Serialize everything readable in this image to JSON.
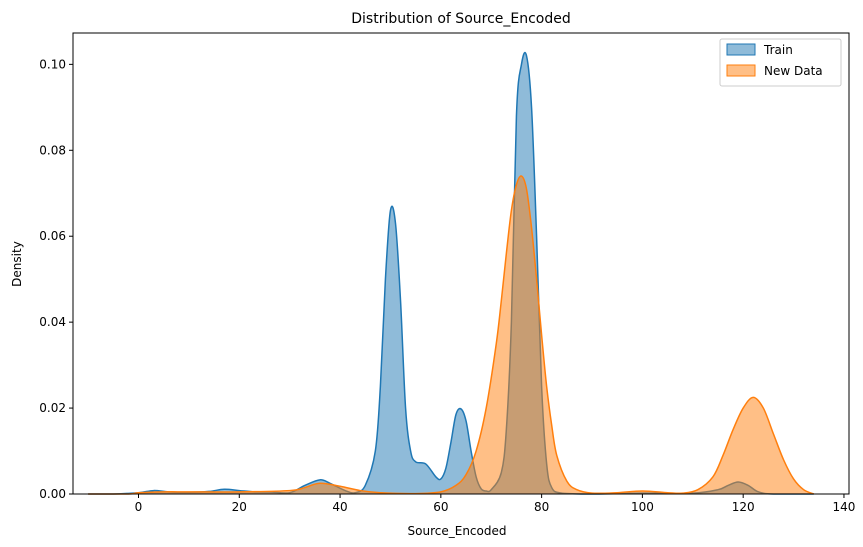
{
  "chart_data": {
    "type": "area",
    "title": "Distribution of Source_Encoded",
    "xlabel": "Source_Encoded",
    "ylabel": "Density",
    "xlim": [
      -13,
      141
    ],
    "ylim": [
      0,
      0.1073
    ],
    "xticks": [
      0,
      20,
      40,
      60,
      80,
      100,
      120,
      140
    ],
    "xtick_labels": [
      "0",
      "20",
      "40",
      "60",
      "80",
      "100",
      "120",
      "140"
    ],
    "yticks": [
      0,
      0.02,
      0.04,
      0.06,
      0.08,
      0.1
    ],
    "ytick_labels": [
      "0.00",
      "0.02",
      "0.04",
      "0.06",
      "0.08",
      "0.10"
    ],
    "grid": false,
    "legend": {
      "position": "top-right",
      "entries": [
        "Train",
        "New Data"
      ]
    },
    "series": [
      {
        "name": "Train",
        "color": "#1f77b4",
        "x": [
          -10,
          -5,
          0,
          3,
          6,
          10,
          14,
          17,
          20,
          23,
          26,
          30,
          33,
          36,
          38,
          41,
          43,
          45,
          47,
          48,
          49,
          50,
          51,
          52,
          53,
          54,
          55,
          57,
          59,
          60,
          61,
          62,
          63,
          64,
          65,
          66,
          67,
          68,
          69,
          70,
          72,
          73,
          74,
          75,
          76,
          77,
          78,
          79,
          80,
          81,
          82,
          84,
          90,
          100,
          110,
          115,
          117,
          119,
          121,
          123,
          126,
          134
        ],
        "y": [
          0,
          0,
          0.0003,
          0.0008,
          0.0005,
          0.0004,
          0.0006,
          0.0011,
          0.0008,
          0.0005,
          0.0005,
          0.0003,
          0.002,
          0.0033,
          0.0025,
          0.0008,
          0.0003,
          0.002,
          0.01,
          0.025,
          0.05,
          0.066,
          0.063,
          0.045,
          0.02,
          0.01,
          0.0075,
          0.007,
          0.004,
          0.0035,
          0.006,
          0.012,
          0.0185,
          0.0198,
          0.017,
          0.01,
          0.004,
          0.0012,
          0.0007,
          0.001,
          0.005,
          0.015,
          0.04,
          0.088,
          0.1,
          0.102,
          0.09,
          0.06,
          0.025,
          0.007,
          0.0015,
          0.0002,
          0,
          0.0002,
          0.0002,
          0.001,
          0.002,
          0.0028,
          0.002,
          0.0005,
          0,
          0
        ]
      },
      {
        "name": "New Data",
        "color": "#ff7f0e",
        "x": [
          -10,
          -2,
          0,
          5,
          10,
          20,
          30,
          33,
          36,
          40,
          44,
          48,
          55,
          60,
          63,
          65,
          67,
          69,
          71,
          72,
          73,
          74,
          75,
          76,
          77,
          78,
          79,
          80,
          81,
          82,
          83,
          85,
          87,
          90,
          95,
          100,
          105,
          108,
          111,
          114,
          116,
          118,
          120,
          122,
          124,
          126,
          128,
          130,
          132,
          134
        ],
        "y": [
          0,
          0,
          0.0003,
          0.0005,
          0.0005,
          0.0005,
          0.0008,
          0.0015,
          0.0025,
          0.0018,
          0.0008,
          0.0003,
          0.0001,
          0.0005,
          0.002,
          0.0045,
          0.01,
          0.02,
          0.035,
          0.045,
          0.056,
          0.066,
          0.072,
          0.074,
          0.071,
          0.062,
          0.05,
          0.037,
          0.025,
          0.016,
          0.009,
          0.003,
          0.001,
          0.0002,
          0.0003,
          0.0007,
          0.0003,
          0.0002,
          0.001,
          0.004,
          0.009,
          0.015,
          0.02,
          0.0225,
          0.02,
          0.014,
          0.008,
          0.0035,
          0.001,
          0
        ]
      }
    ]
  }
}
